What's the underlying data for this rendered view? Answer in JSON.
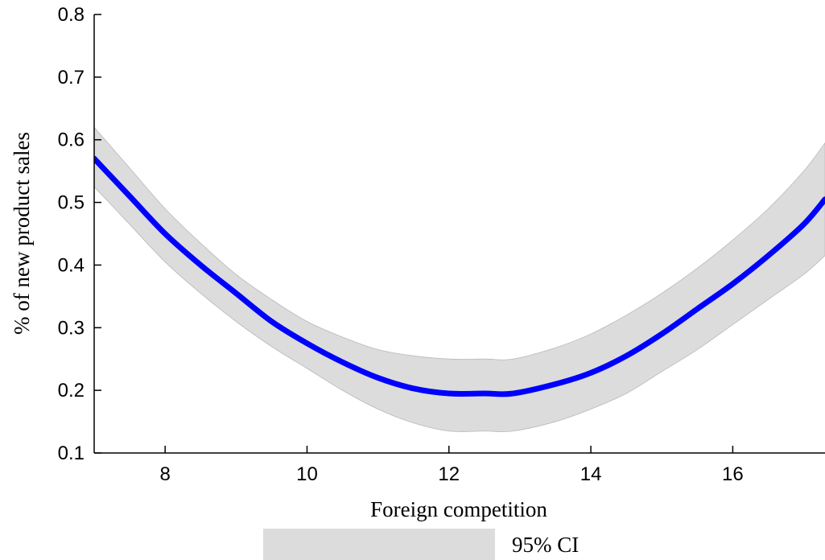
{
  "chart_data": {
    "type": "line",
    "title": "",
    "xlabel": "Foreign competition",
    "ylabel": "% of new product sales",
    "xlim": [
      7,
      17.3
    ],
    "ylim": [
      0.1,
      0.8
    ],
    "xticks": [
      8,
      10,
      12,
      14,
      16
    ],
    "xtick_labels": [
      "8",
      "10",
      "12",
      "14",
      "16"
    ],
    "yticks": [
      0.1,
      0.2,
      0.3,
      0.4,
      0.5,
      0.6,
      0.7,
      0.8
    ],
    "ytick_labels": [
      "0.1",
      "0.2",
      "0.3",
      "0.4",
      "0.5",
      "0.6",
      "0.7",
      "0.8"
    ],
    "grid": false,
    "legend_placement": "bottom",
    "colors": {
      "line": "#0000ff",
      "band": "#dcdcdc",
      "axis": "#000000"
    },
    "series": [
      {
        "x": [
          7.0,
          7.5,
          8.0,
          8.5,
          9.0,
          9.5,
          10.0,
          10.5,
          11.0,
          11.5,
          12.0,
          12.5,
          12.9,
          13.5,
          14.0,
          14.5,
          15.0,
          15.5,
          16.0,
          16.5,
          17.0,
          17.3
        ],
        "y": [
          0.57,
          0.51,
          0.45,
          0.4,
          0.355,
          0.31,
          0.275,
          0.245,
          0.22,
          0.203,
          0.195,
          0.195,
          0.195,
          0.21,
          0.228,
          0.255,
          0.29,
          0.33,
          0.37,
          0.415,
          0.465,
          0.505
        ]
      }
    ],
    "band": {
      "name": "95% CI",
      "x": [
        7.0,
        7.5,
        8.0,
        8.5,
        9.0,
        9.5,
        10.0,
        10.5,
        11.0,
        11.5,
        12.0,
        12.5,
        12.9,
        13.5,
        14.0,
        14.5,
        15.0,
        15.5,
        16.0,
        16.5,
        17.0,
        17.3
      ],
      "upper": [
        0.62,
        0.555,
        0.49,
        0.435,
        0.385,
        0.345,
        0.31,
        0.285,
        0.265,
        0.255,
        0.25,
        0.25,
        0.25,
        0.268,
        0.29,
        0.32,
        0.355,
        0.395,
        0.44,
        0.49,
        0.55,
        0.595
      ],
      "lower": [
        0.525,
        0.465,
        0.405,
        0.355,
        0.31,
        0.27,
        0.235,
        0.2,
        0.17,
        0.148,
        0.135,
        0.135,
        0.135,
        0.15,
        0.17,
        0.195,
        0.23,
        0.265,
        0.305,
        0.345,
        0.385,
        0.415
      ]
    }
  }
}
